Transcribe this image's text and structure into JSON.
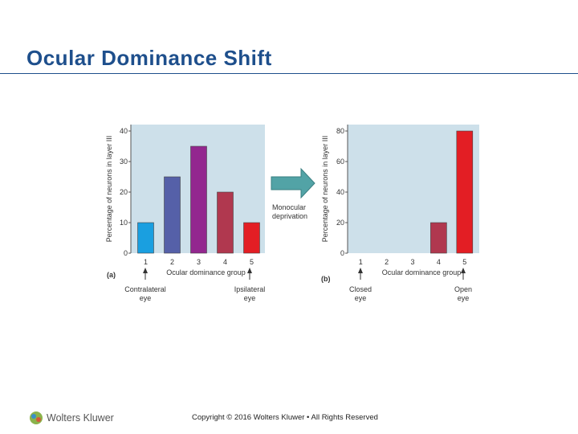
{
  "slide": {
    "title": "Ocular Dominance Shift",
    "copyright": "Copyright © 2016 Wolters Kluwer • All Rights Reserved",
    "logo_text": "Wolters Kluwer"
  },
  "arrow_label_line1": "Monocular",
  "arrow_label_line2": "deprivation",
  "chart_data": [
    {
      "type": "bar",
      "panel_label": "(a)",
      "categories": [
        "1",
        "2",
        "3",
        "4",
        "5"
      ],
      "values": [
        10,
        25,
        35,
        20,
        10
      ],
      "colors": [
        "#1a9fe0",
        "#5560a8",
        "#93278f",
        "#b0384f",
        "#e31e24"
      ],
      "ylabel": "Percentage of neurons in layer III",
      "xlabel": "Ocular dominance group",
      "yticks": [
        0,
        10,
        20,
        30,
        40
      ],
      "ylim": [
        0,
        40
      ],
      "left_annotation": [
        "Contralateral",
        "eye"
      ],
      "right_annotation": [
        "Ipsilateral",
        "eye"
      ]
    },
    {
      "type": "bar",
      "panel_label": "(b)",
      "categories": [
        "1",
        "2",
        "3",
        "4",
        "5"
      ],
      "values": [
        0,
        0,
        0,
        20,
        80
      ],
      "colors": [
        "#1a9fe0",
        "#5560a8",
        "#93278f",
        "#b0384f",
        "#e31e24"
      ],
      "ylabel": "Percentage of neurons in layer III",
      "xlabel": "Ocular dominance group",
      "yticks": [
        0,
        20,
        40,
        60,
        80
      ],
      "ylim": [
        0,
        80
      ],
      "left_annotation": [
        "Closed",
        "eye"
      ],
      "right_annotation": [
        "Open",
        "eye"
      ]
    }
  ]
}
